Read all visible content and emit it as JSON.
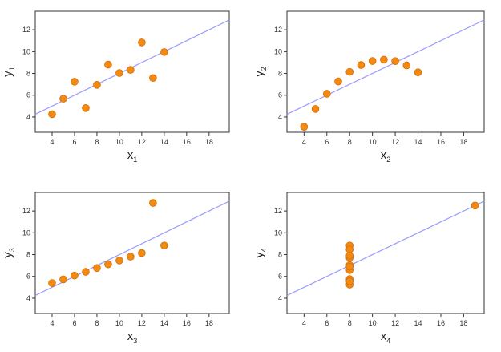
{
  "chart_data": [
    {
      "type": "scatter",
      "xlabel": "x",
      "xlabel_sub": "1",
      "ylabel": "y",
      "ylabel_sub": "1",
      "xlim": [
        2.5,
        19.8
      ],
      "ylim": [
        2.6,
        13.7
      ],
      "xticks": [
        4,
        6,
        8,
        10,
        12,
        14,
        16,
        18
      ],
      "yticks": [
        4,
        6,
        8,
        10,
        12
      ],
      "grid": false,
      "fit_line": {
        "intercept": 3.0,
        "slope": 0.5
      },
      "x": [
        10,
        8,
        13,
        9,
        11,
        14,
        6,
        4,
        12,
        7,
        5
      ],
      "y": [
        8.04,
        6.95,
        7.58,
        8.81,
        8.33,
        9.96,
        7.24,
        4.26,
        10.84,
        4.82,
        5.68
      ],
      "colors": {
        "point": "#f28a12",
        "line": "#9a9cff"
      }
    },
    {
      "type": "scatter",
      "xlabel": "x",
      "xlabel_sub": "2",
      "ylabel": "y",
      "ylabel_sub": "2",
      "xlim": [
        2.5,
        19.8
      ],
      "ylim": [
        2.6,
        13.7
      ],
      "xticks": [
        4,
        6,
        8,
        10,
        12,
        14,
        16,
        18
      ],
      "yticks": [
        4,
        6,
        8,
        10,
        12
      ],
      "grid": false,
      "fit_line": {
        "intercept": 3.0,
        "slope": 0.5
      },
      "x": [
        10,
        8,
        13,
        9,
        11,
        14,
        6,
        4,
        12,
        7,
        5
      ],
      "y": [
        9.14,
        8.14,
        8.74,
        8.77,
        9.26,
        8.1,
        6.13,
        3.1,
        9.13,
        7.26,
        4.74
      ],
      "colors": {
        "point": "#f28a12",
        "line": "#9a9cff"
      }
    },
    {
      "type": "scatter",
      "xlabel": "x",
      "xlabel_sub": "3",
      "ylabel": "y",
      "ylabel_sub": "3",
      "xlim": [
        2.5,
        19.8
      ],
      "ylim": [
        2.6,
        13.7
      ],
      "xticks": [
        4,
        6,
        8,
        10,
        12,
        14,
        16,
        18
      ],
      "yticks": [
        4,
        6,
        8,
        10,
        12
      ],
      "grid": false,
      "fit_line": {
        "intercept": 3.0,
        "slope": 0.5
      },
      "x": [
        10,
        8,
        13,
        9,
        11,
        14,
        6,
        4,
        12,
        7,
        5
      ],
      "y": [
        7.46,
        6.77,
        12.74,
        7.11,
        7.81,
        8.84,
        6.08,
        5.39,
        8.15,
        6.42,
        5.73
      ],
      "colors": {
        "point": "#f28a12",
        "line": "#9a9cff"
      }
    },
    {
      "type": "scatter",
      "xlabel": "x",
      "xlabel_sub": "4",
      "ylabel": "y",
      "ylabel_sub": "4",
      "xlim": [
        2.5,
        19.8
      ],
      "ylim": [
        2.6,
        13.7
      ],
      "xticks": [
        4,
        6,
        8,
        10,
        12,
        14,
        16,
        18
      ],
      "yticks": [
        4,
        6,
        8,
        10,
        12
      ],
      "grid": false,
      "fit_line": {
        "intercept": 3.0,
        "slope": 0.5
      },
      "x": [
        8,
        8,
        8,
        8,
        8,
        8,
        8,
        19,
        8,
        8,
        8
      ],
      "y": [
        6.58,
        5.76,
        7.71,
        8.84,
        8.47,
        7.04,
        5.25,
        12.5,
        5.56,
        7.91,
        6.89
      ],
      "colors": {
        "point": "#f28a12",
        "line": "#9a9cff"
      }
    }
  ]
}
